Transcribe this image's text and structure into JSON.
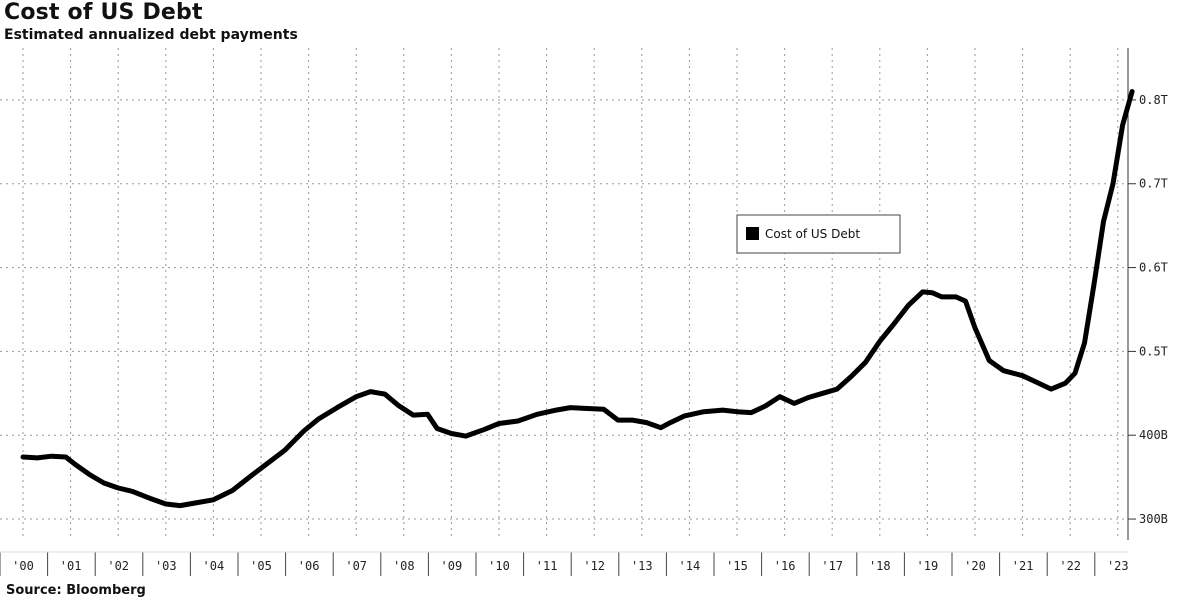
{
  "chart_data": {
    "type": "line",
    "title": "Cost of US Debt",
    "subtitle": "Estimated annualized debt payments",
    "source": "Source: Bloomberg",
    "xlabel": "",
    "ylabel": "",
    "x_tick_labels": [
      "'00",
      "'01",
      "'02",
      "'03",
      "'04",
      "'05",
      "'06",
      "'07",
      "'08",
      "'09",
      "'10",
      "'11",
      "'12",
      "'13",
      "'14",
      "'15",
      "'16",
      "'17",
      "'18",
      "'19",
      "'20",
      "'21",
      "'22",
      "'23"
    ],
    "y_ticks": [
      300,
      400,
      500,
      600,
      700,
      800
    ],
    "y_tick_labels": [
      "300B",
      "400B",
      "0.5T",
      "0.6T",
      "0.7T",
      "0.8T"
    ],
    "ylim": [
      275,
      850
    ],
    "xlim": [
      2000.0,
      2023.5
    ],
    "grid": true,
    "legend_position": "center-right",
    "line_color": "#000000",
    "series": [
      {
        "name": "Cost of US Debt",
        "x": [
          2000.0,
          2000.3,
          2000.6,
          2000.9,
          2001.1,
          2001.4,
          2001.7,
          2002.0,
          2002.3,
          2002.7,
          2003.0,
          2003.3,
          2003.6,
          2004.0,
          2004.4,
          2004.8,
          2005.1,
          2005.5,
          2005.9,
          2006.2,
          2006.6,
          2007.0,
          2007.3,
          2007.6,
          2007.9,
          2008.2,
          2008.5,
          2008.7,
          2009.0,
          2009.3,
          2009.7,
          2010.0,
          2010.4,
          2010.8,
          2011.2,
          2011.5,
          2011.8,
          2012.2,
          2012.5,
          2012.8,
          2013.1,
          2013.4,
          2013.6,
          2013.9,
          2014.3,
          2014.7,
          2015.0,
          2015.3,
          2015.6,
          2015.9,
          2016.2,
          2016.5,
          2016.8,
          2017.1,
          2017.4,
          2017.7,
          2018.0,
          2018.3,
          2018.6,
          2018.9,
          2019.1,
          2019.3,
          2019.6,
          2019.8,
          2020.0,
          2020.3,
          2020.6,
          2021.0,
          2021.3,
          2021.6,
          2021.9,
          2022.1,
          2022.3,
          2022.5,
          2022.7,
          2022.9,
          2023.1,
          2023.3
        ],
        "values": [
          374,
          373,
          375,
          374,
          365,
          353,
          343,
          337,
          333,
          324,
          318,
          316,
          319,
          323,
          334,
          352,
          365,
          382,
          405,
          419,
          433,
          446,
          452,
          449,
          435,
          424,
          425,
          408,
          402,
          399,
          407,
          414,
          417,
          425,
          430,
          433,
          432,
          431,
          418,
          418,
          415,
          409,
          415,
          423,
          428,
          430,
          428,
          427,
          435,
          446,
          438,
          445,
          450,
          455,
          470,
          487,
          512,
          533,
          555,
          571,
          570,
          565,
          565,
          560,
          528,
          489,
          477,
          471,
          463,
          455,
          462,
          474,
          510,
          580,
          655,
          700,
          770,
          810
        ]
      }
    ]
  }
}
